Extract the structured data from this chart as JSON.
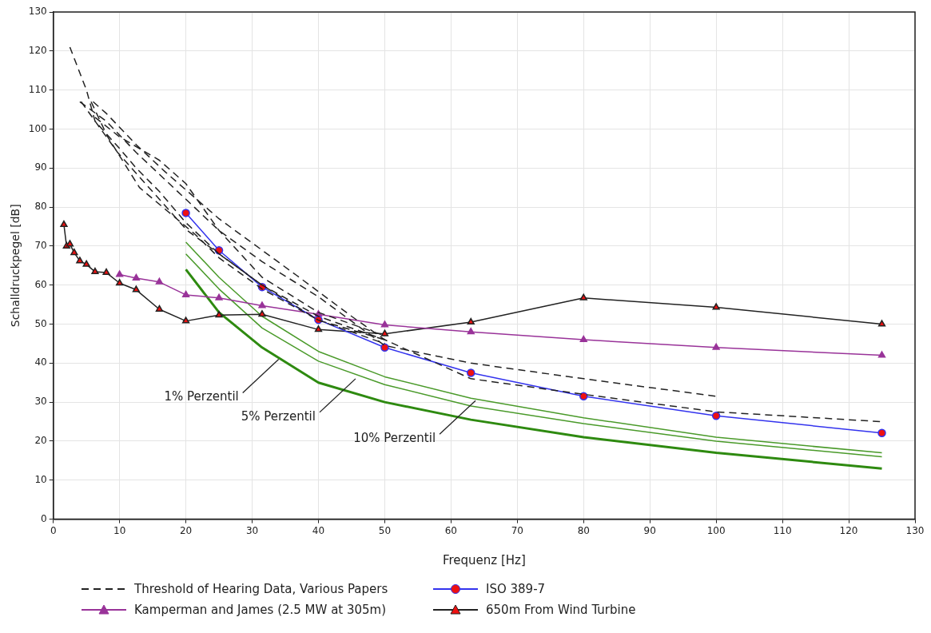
{
  "chart_data": {
    "type": "line",
    "xlabel": "Frequenz [Hz]",
    "ylabel": "Schalldruckpegel [dB]",
    "xlim": [
      0,
      130
    ],
    "xticks": [
      0,
      10,
      20,
      30,
      40,
      50,
      60,
      70,
      80,
      90,
      100,
      110,
      120,
      130
    ],
    "ylim": [
      0,
      130
    ],
    "yticks": [
      0,
      10,
      20,
      30,
      40,
      50,
      60,
      70,
      80,
      90,
      100,
      110,
      120,
      130
    ],
    "grid": true,
    "legend": "bottom",
    "series": [
      {
        "name": "Threshold of Hearing Data, Various Papers",
        "color": "#222222",
        "line_style": "dashed",
        "marker": "none",
        "x": [
          2.5,
          5,
          6.3,
          10,
          12.5,
          16,
          20,
          25,
          31.5,
          40,
          50,
          63,
          80,
          100,
          125
        ],
        "values": [
          121,
          110,
          102,
          95,
          90,
          84,
          76,
          68,
          60,
          52,
          46,
          36,
          32,
          27.5,
          25
        ]
      },
      {
        "color": "#222222",
        "line_style": "dashed",
        "marker": "none",
        "x": [
          4,
          8,
          12.5,
          20,
          25,
          31.5,
          40,
          50,
          63,
          80,
          100
        ],
        "values": [
          107,
          102,
          94,
          82,
          74,
          66,
          57,
          44.5,
          40,
          36,
          31.5
        ]
      },
      {
        "color": "#222222",
        "line_style": "dashed",
        "marker": "none",
        "x": [
          6,
          8,
          12.5,
          16.9,
          25,
          36.7,
          45,
          50
        ],
        "values": [
          107,
          104,
          96,
          89,
          77,
          62.5,
          52,
          46
        ]
      },
      {
        "color": "#222222",
        "line_style": "dashed",
        "marker": "none",
        "x": [
          4.2,
          9.7,
          16,
          20.2,
          25,
          31.5,
          40,
          50
        ],
        "values": [
          107,
          94,
          82,
          74,
          68,
          60,
          51,
          45
        ]
      },
      {
        "color": "#222222",
        "line_style": "dashed",
        "marker": "none",
        "x": [
          5.7,
          8.2,
          13,
          17.2,
          21.4,
          25,
          31.5,
          40,
          50
        ],
        "values": [
          107,
          98,
          85,
          79,
          73,
          67,
          59,
          51,
          46
        ]
      },
      {
        "color": "#222222",
        "line_style": "dashed",
        "marker": "none",
        "x": [
          6.3,
          10,
          16,
          20,
          25,
          31.5,
          40,
          50
        ],
        "values": [
          103,
          98,
          92,
          86,
          74,
          62,
          53,
          47
        ]
      },
      {
        "name": "ISO 389-7",
        "color": "#3333ee",
        "line_style": "solid",
        "marker": "circle",
        "x": [
          20,
          25,
          31.5,
          40,
          50,
          63,
          80,
          100,
          125
        ],
        "values": [
          78.5,
          68.9,
          59.5,
          51.1,
          44,
          37.5,
          31.5,
          26.5,
          22.1
        ]
      },
      {
        "name": "Kamperman and James (2.5 MW at 305m)",
        "color": "#993399",
        "line_style": "solid",
        "marker": "triangle",
        "x": [
          10,
          12.5,
          16,
          20,
          25,
          31.5,
          40,
          50,
          63,
          80,
          100,
          125
        ],
        "values": [
          62.7,
          61.8,
          60.8,
          57.5,
          56.7,
          54.7,
          52.5,
          49.8,
          48,
          46,
          44,
          42
        ]
      },
      {
        "name": "650m From Wind Turbine",
        "color": "#222222",
        "line_style": "solid",
        "marker": "triangle",
        "x": [
          1.6,
          2,
          2.5,
          3.15,
          4,
          5,
          6.3,
          8,
          10,
          12.5,
          16,
          20,
          25,
          31.5,
          40,
          50,
          63,
          80,
          100,
          125
        ],
        "values": [
          75.5,
          70,
          70.5,
          68.3,
          66.2,
          65.3,
          63.4,
          63.2,
          60.5,
          58.8,
          53.8,
          50.8,
          52.3,
          52.5,
          48.6,
          47.5,
          50.5,
          56.7,
          54.3,
          50
        ]
      },
      {
        "color": "#4a9a2a",
        "line_style": "solid",
        "marker": "none",
        "x": [
          20,
          25,
          31.5,
          40,
          50,
          63,
          80,
          100,
          125
        ],
        "values": [
          71,
          62,
          52,
          43,
          36.5,
          31,
          26,
          21,
          17
        ]
      },
      {
        "color": "#4a9a2a",
        "line_style": "solid",
        "marker": "none",
        "x": [
          20,
          25,
          31.5,
          40,
          50,
          63,
          80,
          100,
          125
        ],
        "values": [
          68,
          59,
          49,
          40.5,
          34.5,
          29,
          24.5,
          20,
          16
        ]
      },
      {
        "color": "#2e8a10",
        "line_style": "solid",
        "marker": "none",
        "x": [
          20,
          25,
          31.5,
          40,
          50,
          63,
          80,
          100,
          125
        ],
        "values": [
          64,
          53,
          44,
          35,
          30,
          25.5,
          21,
          17,
          13
        ]
      }
    ],
    "annotations": [
      {
        "text": "1% Perzentil",
        "x": 34,
        "y": 41
      },
      {
        "text": "5% Perzentil",
        "x": 45.6,
        "y": 36
      },
      {
        "text": "10% Perzentil",
        "x": 63.7,
        "y": 30.4
      }
    ]
  }
}
